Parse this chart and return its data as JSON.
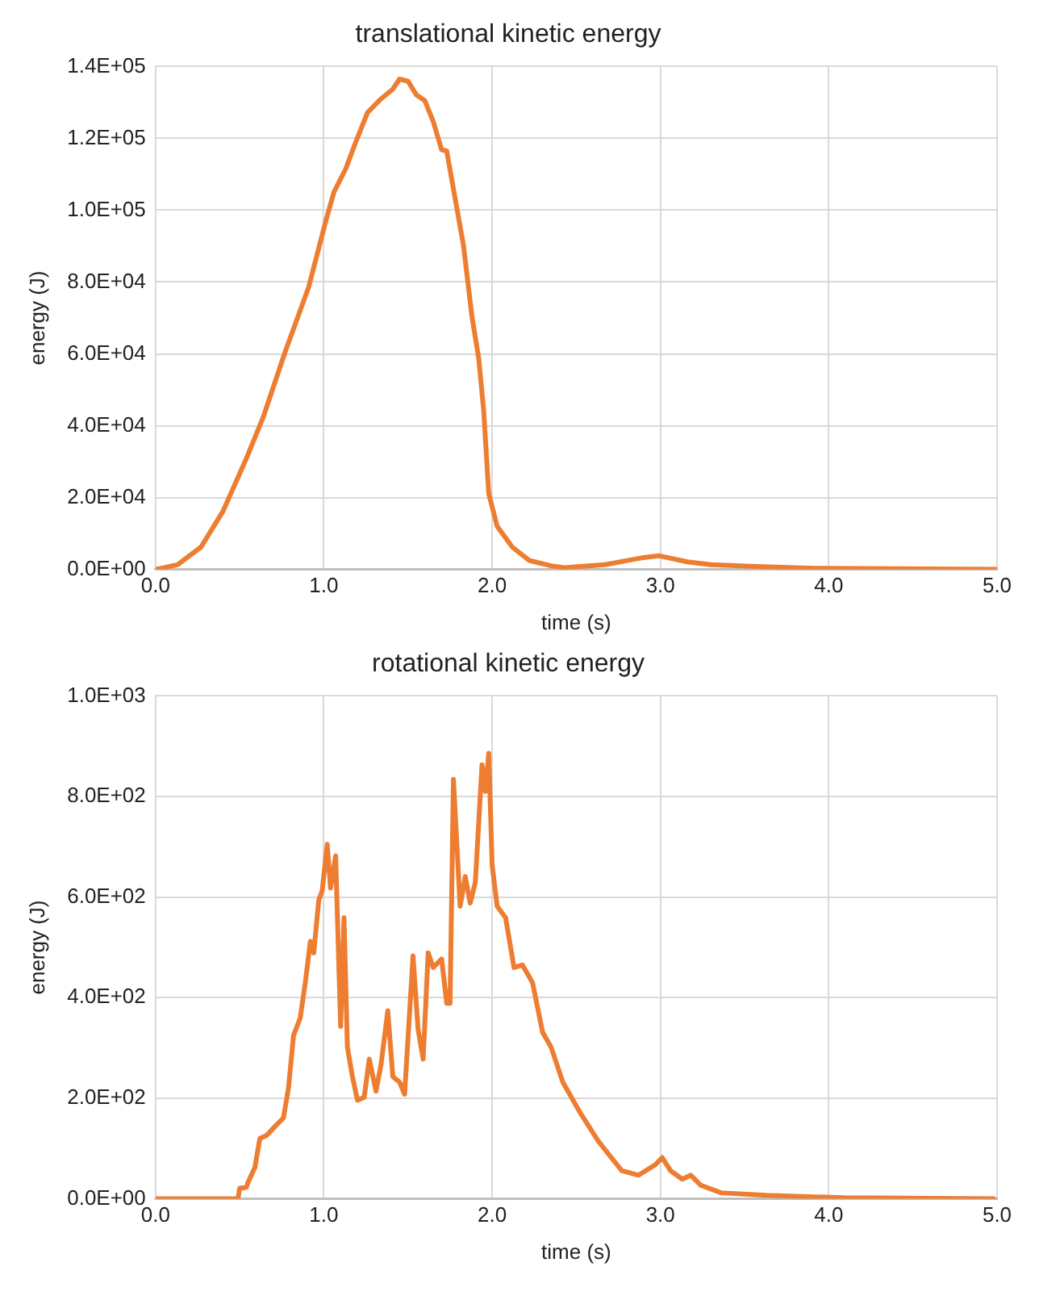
{
  "chart_data": [
    {
      "type": "line",
      "title": "translational kinetic energy",
      "xlabel": "time (s)",
      "ylabel": "energy (J)",
      "xlim": [
        0,
        5
      ],
      "xticks": [
        {
          "value": 0,
          "label": "0.0"
        },
        {
          "value": 1,
          "label": "1.0"
        },
        {
          "value": 2,
          "label": "2.0"
        },
        {
          "value": 3,
          "label": "3.0"
        },
        {
          "value": 4,
          "label": "4.0"
        },
        {
          "value": 5,
          "label": "5.0"
        }
      ],
      "ylim": [
        0,
        140000
      ],
      "yticks": [
        {
          "value": 0,
          "label": "0.0E+00"
        },
        {
          "value": 20000,
          "label": "2.0E+04"
        },
        {
          "value": 40000,
          "label": "4.0E+04"
        },
        {
          "value": 60000,
          "label": "6.0E+04"
        },
        {
          "value": 80000,
          "label": "8.0E+04"
        },
        {
          "value": 100000,
          "label": "1.0E+05"
        },
        {
          "value": 120000,
          "label": "1.2E+05"
        },
        {
          "value": 140000,
          "label": "1.4E+05"
        }
      ],
      "grid": true,
      "legend": false,
      "marker": "none",
      "line_style": "solid",
      "series": [
        {
          "color": "#ed7d31",
          "x": [
            0,
            0.13,
            0.27,
            0.4,
            0.54,
            0.64,
            0.77,
            0.91,
            1.01,
            1.06,
            1.13,
            1.19,
            1.26,
            1.34,
            1.41,
            1.45,
            1.5,
            1.55,
            1.6,
            1.65,
            1.7,
            1.73,
            1.78,
            1.83,
            1.88,
            1.92,
            1.95,
            1.98,
            2.03,
            2.12,
            2.22,
            2.35,
            2.43,
            2.67,
            2.9,
            2.99,
            3.16,
            3.3,
            3.57,
            3.91,
            5.0
          ],
          "values": [
            0,
            1300,
            6200,
            16100,
            30900,
            42400,
            60500,
            78600,
            96700,
            105000,
            111500,
            119000,
            127200,
            131000,
            133700,
            136500,
            135900,
            132100,
            130500,
            124700,
            116800,
            116500,
            103300,
            90100,
            70400,
            58900,
            44100,
            21100,
            12000,
            6200,
            2500,
            1000,
            500,
            1300,
            3300,
            3800,
            2100,
            1300,
            800,
            300,
            0
          ]
        }
      ]
    },
    {
      "type": "line",
      "title": "rotational kinetic energy",
      "xlabel": "time (s)",
      "ylabel": "energy (J)",
      "xlim": [
        0,
        5
      ],
      "xticks": [
        {
          "value": 0,
          "label": "0.0"
        },
        {
          "value": 1,
          "label": "1.0"
        },
        {
          "value": 2,
          "label": "2.0"
        },
        {
          "value": 3,
          "label": "3.0"
        },
        {
          "value": 4,
          "label": "4.0"
        },
        {
          "value": 5,
          "label": "5.0"
        }
      ],
      "ylim": [
        0,
        1000
      ],
      "yticks": [
        {
          "value": 0,
          "label": "0.0E+00"
        },
        {
          "value": 200,
          "label": "2.0E+02"
        },
        {
          "value": 400,
          "label": "4.0E+02"
        },
        {
          "value": 600,
          "label": "6.0E+02"
        },
        {
          "value": 800,
          "label": "8.0E+02"
        },
        {
          "value": 1000,
          "label": "1.0E+03"
        }
      ],
      "grid": true,
      "legend": false,
      "marker": "none",
      "line_style": "solid",
      "series": [
        {
          "color": "#ed7d31",
          "x": [
            0,
            0.49,
            0.5,
            0.54,
            0.55,
            0.59,
            0.62,
            0.66,
            0.71,
            0.76,
            0.79,
            0.82,
            0.86,
            0.89,
            0.92,
            0.94,
            0.97,
            0.99,
            1.02,
            1.04,
            1.07,
            1.08,
            1.1,
            1.12,
            1.14,
            1.17,
            1.2,
            1.24,
            1.27,
            1.31,
            1.34,
            1.38,
            1.41,
            1.45,
            1.48,
            1.53,
            1.56,
            1.59,
            1.62,
            1.65,
            1.7,
            1.73,
            1.75,
            1.77,
            1.81,
            1.84,
            1.87,
            1.9,
            1.94,
            1.96,
            1.98,
            2.0,
            2.03,
            2.08,
            2.13,
            2.18,
            2.24,
            2.3,
            2.35,
            2.42,
            2.52,
            2.63,
            2.77,
            2.87,
            2.97,
            3.01,
            3.06,
            3.13,
            3.18,
            3.24,
            3.36,
            3.63,
            4.1,
            4.98
          ],
          "values": [
            0,
            0,
            21,
            23,
            33,
            62,
            120,
            126,
            144,
            161,
            220,
            325,
            360,
            430,
            512,
            489,
            594,
            612,
            705,
            618,
            682,
            571,
            343,
            559,
            302,
            243,
            196,
            202,
            278,
            214,
            267,
            374,
            243,
            232,
            208,
            483,
            337,
            278,
            489,
            460,
            477,
            389,
            389,
            834,
            582,
            641,
            588,
            629,
            863,
            810,
            886,
            664,
            582,
            559,
            460,
            465,
            430,
            331,
            302,
            232,
            173,
            115,
            56,
            47,
            68,
            82,
            56,
            39,
            47,
            27,
            12,
            7,
            2,
            0
          ]
        }
      ]
    }
  ]
}
